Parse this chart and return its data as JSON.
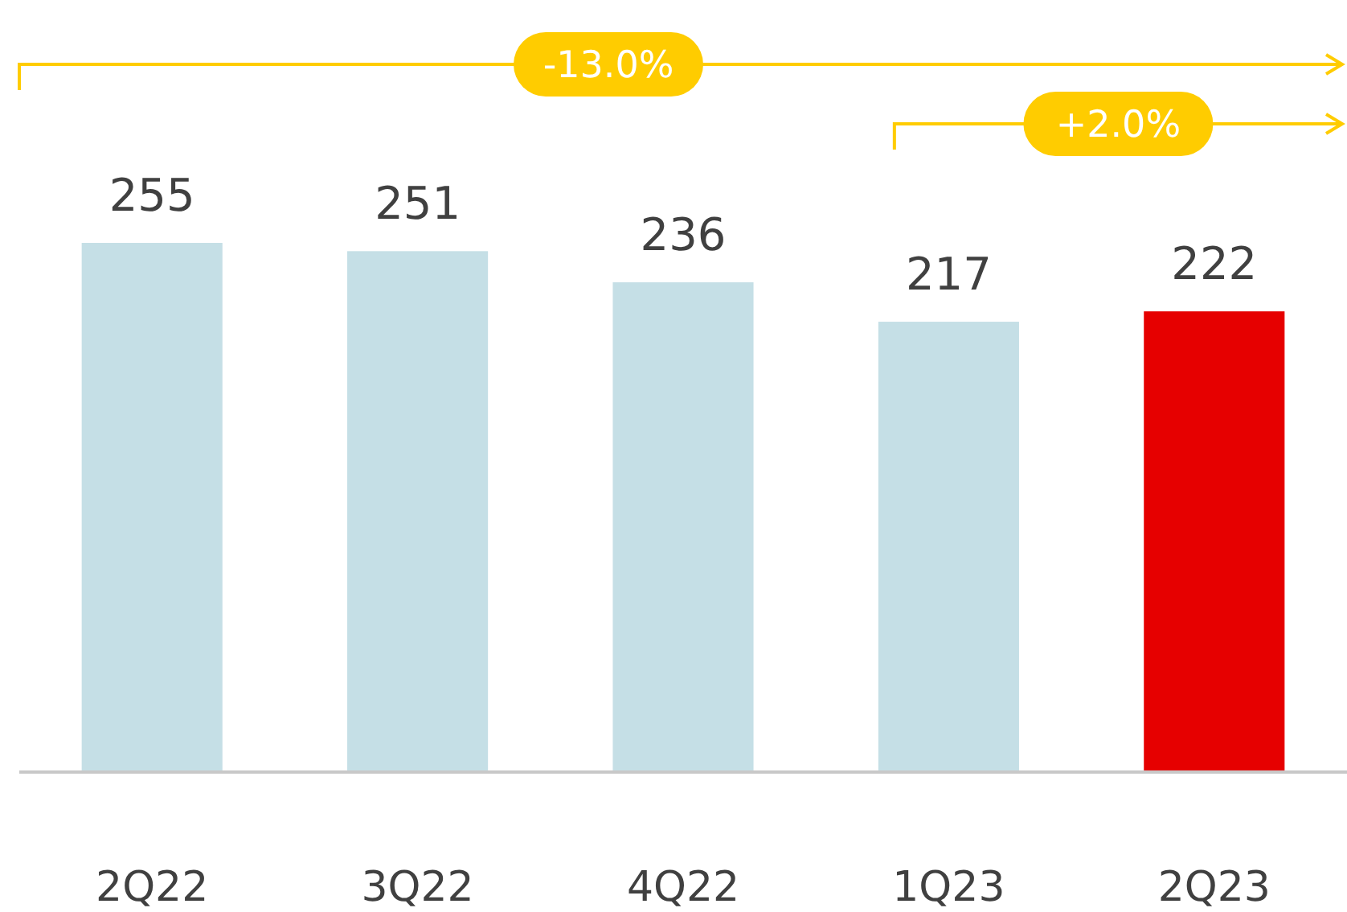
{
  "chart_data": {
    "type": "bar",
    "categories": [
      "2Q22",
      "3Q22",
      "4Q22",
      "1Q23",
      "2Q23"
    ],
    "values": [
      255,
      251,
      236,
      217,
      222
    ],
    "colors": [
      "#c5dfe6",
      "#c5dfe6",
      "#c5dfe6",
      "#c5dfe6",
      "#e60000"
    ],
    "data_labels": true,
    "annotations": [
      "-13.0%",
      "+2.0%"
    ]
  }
}
